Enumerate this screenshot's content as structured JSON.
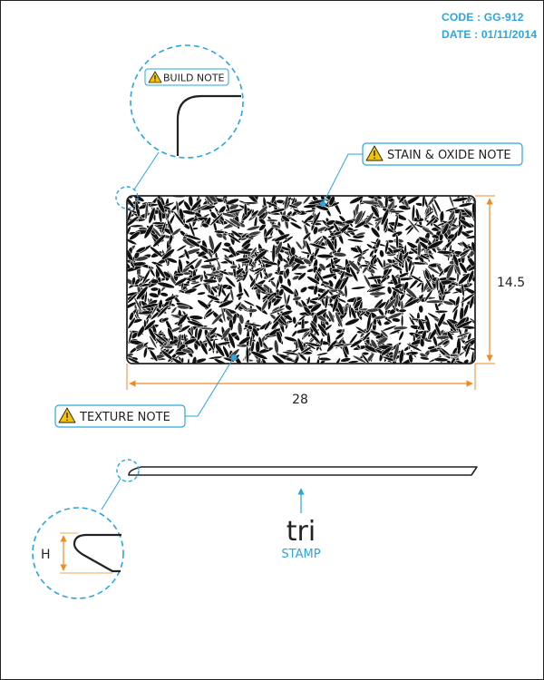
{
  "header": {
    "code_label": "CODE",
    "code_value": "GG-912",
    "date_label": "DATE",
    "date_value": "01/11/2014"
  },
  "notes": {
    "build": "BUILD NOTE",
    "stain": "STAIN & OXIDE NOTE",
    "texture": "TEXTURE NOTE"
  },
  "dimensions": {
    "length": "28",
    "width": "14.5",
    "height": "H"
  },
  "stamp": {
    "logo": "tri",
    "label": "STAMP"
  },
  "colors": {
    "accent": "#2aa6e0",
    "dimension": "#f08a24",
    "ink": "#222222",
    "warning": "#f5c400"
  },
  "icons": {
    "warning": "warning-triangle-icon"
  }
}
